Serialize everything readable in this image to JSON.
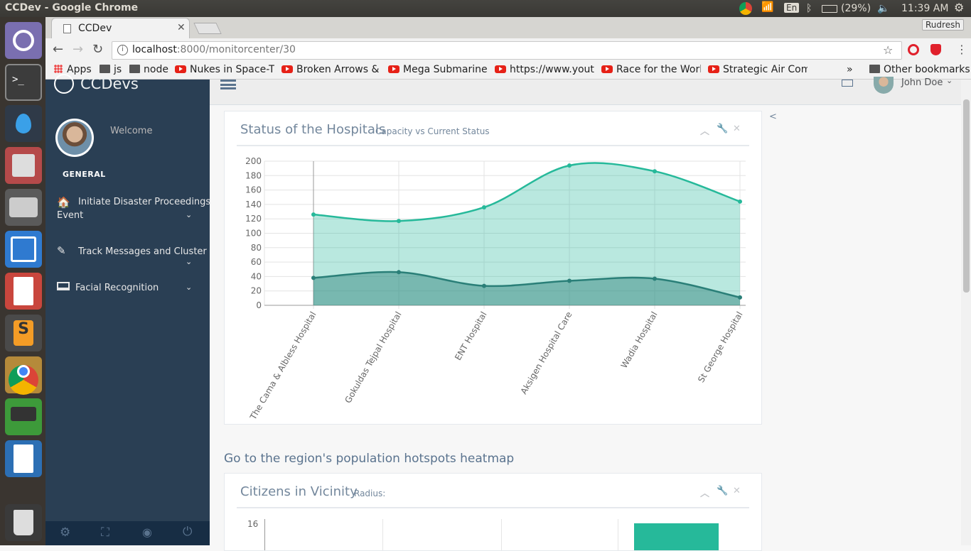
{
  "system": {
    "window_title": "CCDev - Google Chrome",
    "language": "En",
    "battery": "(29%)",
    "time": "11:39 AM"
  },
  "browser": {
    "tab_title": "CCDev",
    "profile": "Rudresh",
    "url_host": "localhost",
    "url_rest": ":8000/monitorcenter/30",
    "bookmarks": [
      {
        "label": "Apps",
        "icon": "apps-grid-icon"
      },
      {
        "label": "js",
        "icon": "folder-icon"
      },
      {
        "label": "node",
        "icon": "folder-icon"
      },
      {
        "label": "Nukes in Space-Th",
        "icon": "youtube-icon"
      },
      {
        "label": "Broken Arrows & In",
        "icon": "youtube-icon"
      },
      {
        "label": "Mega Submarine: T",
        "icon": "youtube-icon"
      },
      {
        "label": "https://www.youtu",
        "icon": "youtube-icon"
      },
      {
        "label": "Race for the World",
        "icon": "youtube-icon"
      },
      {
        "label": "Strategic Air Comm",
        "icon": "youtube-icon"
      }
    ],
    "overflow": "»",
    "other_bookmarks": "Other bookmarks"
  },
  "sidebar": {
    "brand": "CCDevs",
    "welcome": "Welcome",
    "section": "GENERAL",
    "items": [
      {
        "label1": "Initiate Disaster Proceedings",
        "label2": "Event",
        "icon": "home-icon"
      },
      {
        "label1": "Track Messages and Cluster",
        "label2": "",
        "icon": "edit-icon"
      },
      {
        "label1": "Facial Recognition",
        "label2": "",
        "icon": "desktop-icon"
      }
    ]
  },
  "topnav": {
    "user": "John Doe"
  },
  "panel1": {
    "title": "Status of the Hospitals",
    "subtitle": "Capacity vs Current Status"
  },
  "heatmap_link": "Go to the region's population hotspots heatmap",
  "panel2": {
    "title": "Citizens in Vicinity",
    "subtitle": "Radius:",
    "y_top_tick": "16"
  },
  "right_toggle": "<",
  "chart_data": [
    {
      "type": "area",
      "categories": [
        "The Cama & Albless Hospital",
        "Gokuldas Tejpal Hospital",
        "ENT Hospital",
        "Aksigen Hospital Care",
        "Wadia Hospital",
        "St George Hospital"
      ],
      "series": [
        {
          "values": [
            126,
            117,
            136,
            194,
            186,
            144
          ],
          "color": "#26B99A"
        },
        {
          "values": [
            38,
            46,
            27,
            34,
            37,
            11
          ],
          "color": "#2a7f78"
        }
      ],
      "ylim": [
        0,
        200
      ],
      "yticks": [
        "0",
        "20",
        "40",
        "60",
        "80",
        "100",
        "120",
        "140",
        "160",
        "180",
        "200"
      ],
      "grid": true
    }
  ]
}
